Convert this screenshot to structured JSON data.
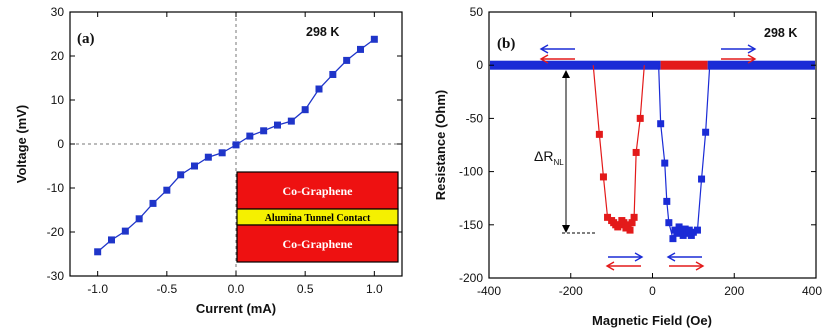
{
  "chart_data": [
    {
      "type": "line",
      "panel_label": "(a)",
      "annotation": "298 K",
      "xlabel": "Current (mA)",
      "ylabel": "Voltage (mV)",
      "xlim": [
        -1.2,
        1.2
      ],
      "ylim": [
        -30,
        30
      ],
      "xticks": [
        -1.0,
        -0.5,
        0.0,
        0.5,
        1.0
      ],
      "yticks": [
        -30,
        -20,
        -10,
        0,
        10,
        20,
        30
      ],
      "xtick_labels": [
        "-1.0",
        "-0.5",
        "0.0",
        "0.5",
        "1.0"
      ],
      "ytick_labels": [
        "-30",
        "-20",
        "-10",
        "0",
        "10",
        "20",
        "30"
      ],
      "series": [
        {
          "color": "#1f35c9",
          "marker": "square",
          "x": [
            -1.0,
            -0.9,
            -0.8,
            -0.7,
            -0.6,
            -0.5,
            -0.4,
            -0.3,
            -0.2,
            -0.1,
            0.0,
            0.1,
            0.2,
            0.3,
            0.4,
            0.5,
            0.6,
            0.7,
            0.8,
            0.9,
            1.0
          ],
          "y": [
            -24.5,
            -21.8,
            -19.8,
            -17.0,
            -13.5,
            -10.5,
            -7.0,
            -5.0,
            -3.0,
            -2.0,
            -0.2,
            1.8,
            3.0,
            4.3,
            5.2,
            7.8,
            12.5,
            15.8,
            19.0,
            21.5,
            23.8
          ]
        }
      ],
      "inset": {
        "layers": [
          {
            "label": "Co-Graphene",
            "color": "#ee1111"
          },
          {
            "label": "Alumina Tunnel Contact",
            "color": "#f5f000"
          },
          {
            "label": "Co-Graphene",
            "color": "#ee1111"
          }
        ]
      }
    },
    {
      "type": "scatter",
      "panel_label": "(b)",
      "annotation": "298 K",
      "xlabel": "Magnetic Field (Oe)",
      "ylabel": "Resistance (Ohm)",
      "xlim": [
        -400,
        400
      ],
      "ylim": [
        -200,
        50
      ],
      "xticks": [
        -400,
        -200,
        0,
        200,
        400
      ],
      "yticks": [
        -200,
        -150,
        -100,
        -50,
        0,
        50
      ],
      "xtick_labels": [
        "-400",
        "-200",
        "0",
        "200",
        "400"
      ],
      "ytick_labels": [
        "-200",
        "-150",
        "-100",
        "-50",
        "0",
        "50"
      ],
      "delta_label": "ΔR",
      "delta_subscript": "NL",
      "series": [
        {
          "color": "#e31a1a",
          "marker": "square",
          "x": [
            -130,
            -120,
            -110,
            -100,
            -95,
            -90,
            -85,
            -80,
            -75,
            -70,
            -65,
            -60,
            -55,
            -50,
            -45,
            -40,
            -30,
            -20,
            -10,
            20,
            40,
            60,
            80,
            100,
            120
          ],
          "y": [
            -65,
            -105,
            -143,
            -146,
            -148,
            -150,
            -152,
            -150,
            -146,
            -148,
            -153,
            -150,
            -155,
            -148,
            -143,
            -82,
            -50,
            0,
            0,
            0,
            0,
            0,
            0,
            0,
            0
          ]
        },
        {
          "color": "#1a2bd6",
          "marker": "square",
          "x": [
            20,
            30,
            35,
            40,
            50,
            55,
            60,
            65,
            70,
            75,
            80,
            85,
            90,
            95,
            100,
            110,
            120,
            130,
            140,
            150,
            170,
            200,
            250,
            300
          ],
          "y": [
            -55,
            -92,
            -128,
            -148,
            -163,
            -155,
            -158,
            -152,
            -156,
            -160,
            -154,
            -158,
            -155,
            -160,
            -157,
            -155,
            -107,
            -63,
            0,
            0,
            0,
            0,
            0,
            0
          ]
        }
      ]
    }
  ]
}
